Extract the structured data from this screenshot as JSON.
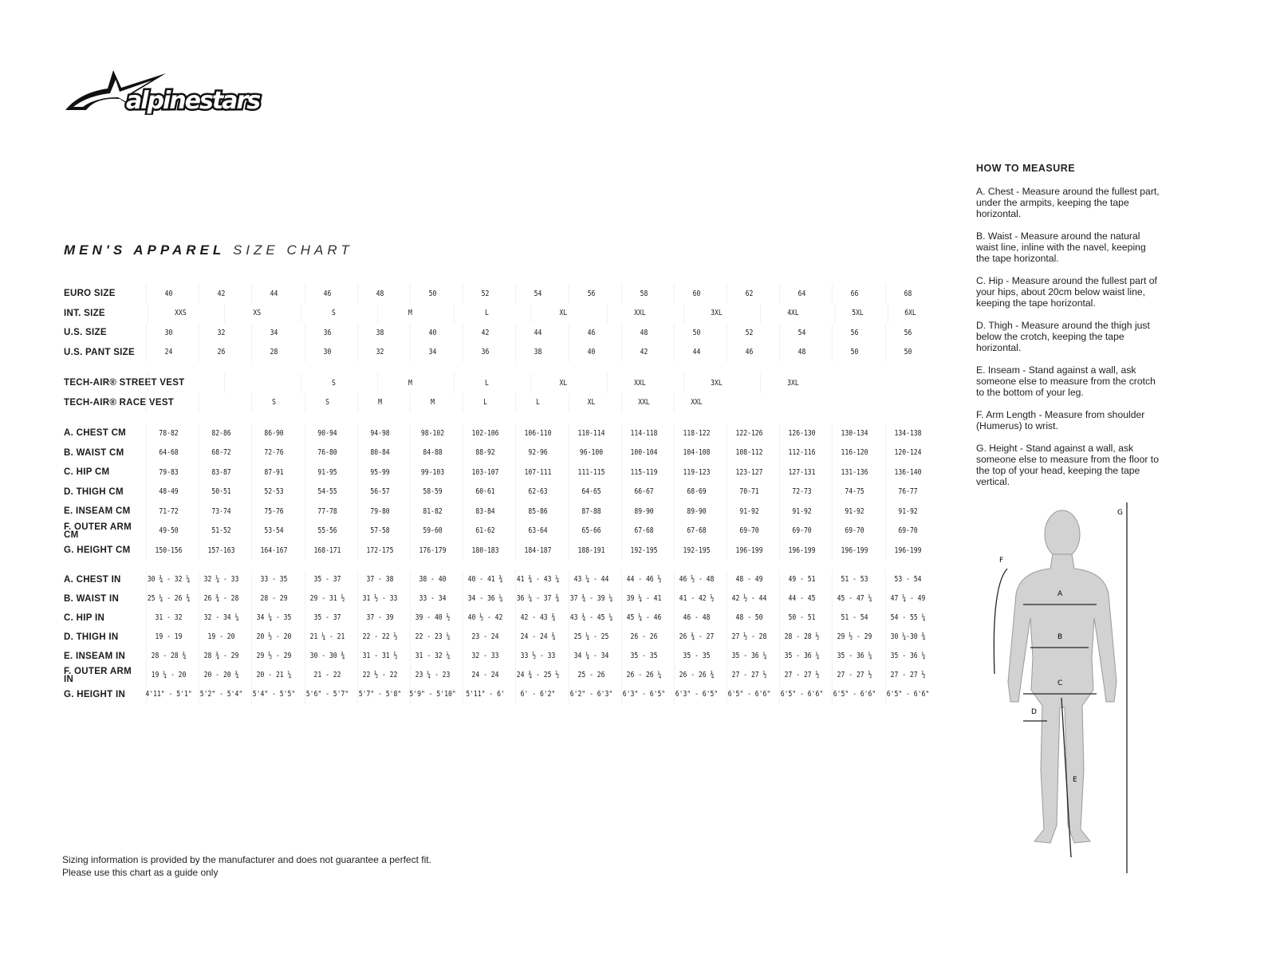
{
  "brand": {
    "name": "alpinestars"
  },
  "title": {
    "bold": "MEN'S APPAREL",
    "light": "SIZE CHART"
  },
  "sizes": {
    "euro": {
      "label": "EURO SIZE",
      "values": [
        "40",
        "42",
        "44",
        "46",
        "48",
        "50",
        "52",
        "54",
        "56",
        "58",
        "60",
        "62",
        "64",
        "66",
        "68"
      ]
    },
    "int": {
      "label": "INT. SIZE",
      "values": [
        "XXS",
        "XS",
        "S",
        "M",
        "L",
        "XL",
        "XXL",
        "3XL",
        "4XL",
        "5XL",
        "6XL"
      ]
    },
    "us": {
      "label": "U.S. SIZE",
      "values": [
        "30",
        "32",
        "34",
        "36",
        "38",
        "40",
        "42",
        "44",
        "46",
        "48",
        "50",
        "52",
        "54",
        "56",
        "56"
      ]
    },
    "pant": {
      "label": "U.S. PANT SIZE",
      "values": [
        "24",
        "26",
        "28",
        "30",
        "32",
        "34",
        "36",
        "38",
        "40",
        "42",
        "44",
        "46",
        "48",
        "50",
        "50"
      ]
    },
    "street_vest": {
      "label": "TECH-AIR® STREET VEST",
      "values": [
        "",
        "",
        "S",
        "M",
        "L",
        "XL",
        "XXL",
        "3XL",
        "3XL"
      ]
    },
    "race_vest": {
      "label": "TECH-AIR® RACE VEST",
      "values": [
        "S",
        "S",
        "M",
        "M",
        "L",
        "L",
        "XL",
        "XXL",
        "XXL"
      ]
    }
  },
  "cm": [
    {
      "label": "A. CHEST CM",
      "values": [
        "78-82",
        "82-86",
        "86-90",
        "90-94",
        "94-98",
        "98-102",
        "102-106",
        "106-110",
        "110-114",
        "114-118",
        "118-122",
        "122-126",
        "126-130",
        "130-134",
        "134-138"
      ]
    },
    {
      "label": "B. WAIST CM",
      "values": [
        "64-68",
        "68-72",
        "72-76",
        "76-80",
        "80-84",
        "84-88",
        "88-92",
        "92-96",
        "96-100",
        "100-104",
        "104-108",
        "108-112",
        "112-116",
        "116-120",
        "120-124"
      ]
    },
    {
      "label": "C. HIP CM",
      "values": [
        "79-83",
        "83-87",
        "87-91",
        "91-95",
        "95-99",
        "99-103",
        "103-107",
        "107-111",
        "111-115",
        "115-119",
        "119-123",
        "123-127",
        "127-131",
        "131-136",
        "136-140"
      ]
    },
    {
      "label": "D. THIGH CM",
      "values": [
        "48-49",
        "50-51",
        "52-53",
        "54-55",
        "56-57",
        "58-59",
        "60-61",
        "62-63",
        "64-65",
        "66-67",
        "68-69",
        "70-71",
        "72-73",
        "74-75",
        "76-77"
      ]
    },
    {
      "label": "E. INSEAM CM",
      "values": [
        "71-72",
        "73-74",
        "75-76",
        "77-78",
        "79-80",
        "81-82",
        "83-84",
        "85-86",
        "87-88",
        "89-90",
        "89-90",
        "91-92",
        "91-92",
        "91-92",
        "91-92"
      ]
    },
    {
      "label": "F. OUTER ARM CM",
      "values": [
        "49-50",
        "51-52",
        "53-54",
        "55-56",
        "57-58",
        "59-60",
        "61-62",
        "63-64",
        "65-66",
        "67-68",
        "67-68",
        "69-70",
        "69-70",
        "69-70",
        "69-70"
      ]
    },
    {
      "label": "G. HEIGHT CM",
      "values": [
        "150-156",
        "157-163",
        "164-167",
        "168-171",
        "172-175",
        "176-179",
        "180-183",
        "184-187",
        "188-191",
        "192-195",
        "192-195",
        "196-199",
        "196-199",
        "196-199",
        "196-199"
      ]
    }
  ],
  "in": [
    {
      "label": "A. CHEST IN",
      "values": [
        "30 ¾ - 32 ¼",
        "32 ¼ - 33",
        "33 - 35",
        "35 - 37",
        "37 - 38",
        "38 - 40",
        "40 - 41 ¾",
        "41 ¾ - 43 ¼",
        "43 ¼ - 44",
        "44 - 46 ½",
        "46 ½ - 48",
        "48 - 49",
        "49 - 51",
        "51 - 53",
        "53 - 54"
      ]
    },
    {
      "label": "B. WAIST IN",
      "values": [
        "25 ¼ - 26 ¾",
        "26 ¾ - 28",
        "28 - 29",
        "29 - 31 ½",
        "31 ½ - 33",
        "33 - 34",
        "34 - 36 ¼",
        "36 ¼ - 37 ¾",
        "37 ¾ - 39 ¼",
        "39 ¼ - 41",
        "41 - 42 ½",
        "42 ½ - 44",
        "44 - 45",
        "45 - 47 ¼",
        "47 ¼ - 49"
      ]
    },
    {
      "label": "C. HIP IN",
      "values": [
        "31 - 32",
        "32 - 34 ¼",
        "34 ¼ - 35",
        "35 - 37",
        "37 - 39",
        "39 - 40 ½",
        "40 ½ - 42",
        "42 - 43 ¾",
        "43 ¾ - 45 ¼",
        "45 ¼ - 46",
        "46 - 48",
        "48 - 50",
        "50 - 51",
        "51 - 54",
        "54 - 55 ¼"
      ]
    },
    {
      "label": "D. THIGH IN",
      "values": [
        "19 - 19",
        "19 - 20",
        "20 ½ - 20",
        "21 ¼ - 21",
        "22 - 22 ½",
        "22 - 23 ¼",
        "23 - 24",
        "24 - 24 ¾",
        "25 ¼ - 25",
        "26 - 26",
        "26 ¾ - 27",
        "27 ½ - 28",
        "28 - 28 ½",
        "29 ½ - 29",
        "30 ¼-30 ¾"
      ]
    },
    {
      "label": "E. INSEAM IN",
      "values": [
        "28 - 28 ¾",
        "28 ¾ - 29",
        "29 ½ - 29",
        "30 - 30 ¾",
        "31 - 31 ½",
        "31 - 32 ¼",
        "32 - 33",
        "33 ½ - 33",
        "34 ¼ - 34",
        "35 - 35",
        "35 - 35",
        "35 - 36 ¼",
        "35 - 36 ¼",
        "35 - 36 ¼",
        "35 - 36 ¼"
      ]
    },
    {
      "label": "F. OUTER ARM IN",
      "values": [
        "19 ¼ - 20",
        "20 - 20 ¾",
        "20 - 21 ¼",
        "21 - 22",
        "22 ½ - 22",
        "23 ¼ - 23",
        "24 - 24",
        "24 ¾ - 25 ½",
        "25 - 26",
        "26 - 26 ¼",
        "26 - 26 ¾",
        "27 - 27 ½",
        "27 - 27 ½",
        "27 - 27 ½",
        "27 - 27 ½"
      ]
    },
    {
      "label": "G. HEIGHT IN",
      "values": [
        "4'11\" - 5'1\"",
        "5'2\" - 5'4\"",
        "5'4\" - 5'5\"",
        "5'6\" - 5'7\"",
        "5'7\" - 5'8\"",
        "5'9\" - 5'10\"",
        "5'11\" - 6'",
        "6' - 6'2\"",
        "6'2\" - 6'3\"",
        "6'3\" - 6'5\"",
        "6'3\" - 6'5\"",
        "6'5\" - 6'6\"",
        "6'5\" - 6'6\"",
        "6'5\" - 6'6\"",
        "6'5\" - 6'6\""
      ]
    }
  ],
  "how_to_measure": {
    "heading": "HOW TO MEASURE",
    "items": [
      "A. Chest - Measure around the fullest part, under the armpits, keeping the tape horizontal.",
      "B. Waist - Measure around the natural waist line, inline with the navel, keeping the tape horizontal.",
      "C. Hip - Measure around the fullest part of your hips, about 20cm below waist line, keeping the tape horizontal.",
      "D. Thigh - Measure around the thigh just below the crotch, keeping the tape horizontal.",
      "E. Inseam - Stand against a wall, ask someone else to measure from the crotch to the bottom of your leg.",
      "F. Arm Length - Measure from shoulder (Humerus) to wrist.",
      "G. Height - Stand against a wall, ask someone else to measure from the floor to the top of your head, keeping the tape vertical."
    ]
  },
  "figure_labels": {
    "a": "A",
    "b": "B",
    "c": "C",
    "d": "D",
    "e": "E",
    "f": "F",
    "g": "G"
  },
  "footer": {
    "line1": "Sizing information is provided by the manufacturer and does not guarantee a perfect fit.",
    "line2": "Please use this chart as a guide only"
  }
}
